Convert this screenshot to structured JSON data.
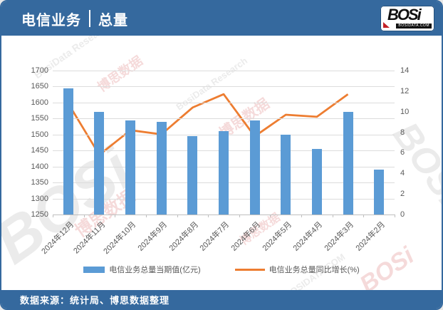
{
  "header": {
    "title_left": "电信业务",
    "title_right": "总量",
    "logo_text": "BOSi",
    "logo_domain": "BOSIDATA.COM"
  },
  "footer": {
    "source_text": "数据来源：统计局、博思数据整理"
  },
  "watermarks": {
    "cn": "博思数据",
    "en": "BosiData Research",
    "logo": "BOSi",
    "domain": "BOSIDATA.COM"
  },
  "colors": {
    "header_bg": "#35699e",
    "bar": "#5b9bd5",
    "line": "#ed7d31",
    "grid": "#dcdcdc",
    "axis_text": "#595959"
  },
  "chart_data": {
    "type": "bar",
    "subtype": "bar+line combo",
    "title": "电信业务 | 总量",
    "categories": [
      "2024年12月",
      "2024年11月",
      "2024年10月",
      "2024年9月",
      "2024年8月",
      "2024年7月",
      "2024年6月",
      "2024年5月",
      "2024年4月",
      "2024年3月",
      "2024年2月"
    ],
    "series": [
      {
        "name": "电信业务总量当期值(亿元)",
        "type": "bar",
        "axis": "left",
        "color": "#5b9bd5",
        "values": [
          1645,
          1570,
          1545,
          1540,
          1495,
          1510,
          1545,
          1500,
          1455,
          1570,
          1390
        ]
      },
      {
        "name": "电信业务总量同比增长(%)",
        "type": "line",
        "axis": "right",
        "color": "#ed7d31",
        "values": [
          10.8,
          5.8,
          8.2,
          7.8,
          10.4,
          11.7,
          7.6,
          9.7,
          9.5,
          11.7,
          null
        ]
      }
    ],
    "axes": {
      "left": {
        "min": 1250,
        "max": 1700,
        "ticks": [
          1700,
          1650,
          1600,
          1550,
          1500,
          1450,
          1400,
          1350,
          1300,
          1250
        ]
      },
      "right": {
        "min": 0,
        "max": 14,
        "ticks": [
          14,
          12,
          10,
          8,
          6,
          4,
          2,
          0
        ]
      }
    },
    "grid": true,
    "legend_position": "bottom"
  }
}
